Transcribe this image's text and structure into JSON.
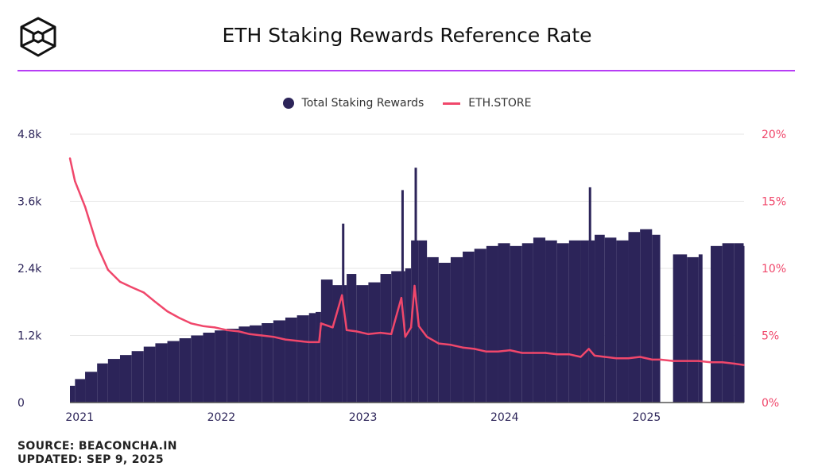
{
  "header": {
    "title": "ETH Staking Rewards Reference Rate",
    "logo": "cube-logo-icon",
    "accent": "#b73ef5"
  },
  "footer": {
    "source": "SOURCE: BEACONCHA.IN",
    "updated": "UPDATED: SEP 9, 2025"
  },
  "chart_data": {
    "type": "bar+line",
    "title": "ETH Staking Rewards Reference Rate",
    "legend_position": "top-center",
    "grid": true,
    "x_ticks": [
      "2021",
      "2022",
      "2023",
      "2024",
      "2025"
    ],
    "y_left": {
      "ticks": [
        "0",
        "1.2k",
        "2.4k",
        "3.6k",
        "4.8k"
      ],
      "range": [
        0,
        4800
      ],
      "color": "#2c2459"
    },
    "y_right": {
      "ticks": [
        "0%",
        "5%",
        "10%",
        "15%",
        "20%"
      ],
      "range": [
        0,
        20
      ],
      "color": "#f0476b"
    },
    "series": [
      {
        "name": "Total Staking Rewards",
        "kind": "bar",
        "axis": "left",
        "color": "#2c2459",
        "dates": [
          "2020-12-07",
          "2020-12-20",
          "2021-01-15",
          "2021-02-15",
          "2021-03-15",
          "2021-04-15",
          "2021-05-15",
          "2021-06-15",
          "2021-07-15",
          "2021-08-15",
          "2021-09-15",
          "2021-10-15",
          "2021-11-15",
          "2021-12-15",
          "2022-01-15",
          "2022-02-15",
          "2022-03-15",
          "2022-04-15",
          "2022-05-15",
          "2022-06-15",
          "2022-07-15",
          "2022-08-15",
          "2022-09-01",
          "2022-09-15",
          "2022-10-15",
          "2022-11-08",
          "2022-11-20",
          "2022-12-15",
          "2023-01-15",
          "2023-02-15",
          "2023-03-15",
          "2023-04-10",
          "2023-04-20",
          "2023-05-05",
          "2023-05-14",
          "2023-05-25",
          "2023-06-15",
          "2023-07-15",
          "2023-08-15",
          "2023-09-15",
          "2023-10-15",
          "2023-11-15",
          "2023-12-15",
          "2024-01-15",
          "2024-02-15",
          "2024-03-15",
          "2024-04-15",
          "2024-05-15",
          "2024-06-15",
          "2024-07-15",
          "2024-08-05",
          "2024-08-20",
          "2024-09-15",
          "2024-10-15",
          "2024-11-15",
          "2024-12-15",
          "2025-01-15",
          "2025-02-05",
          "2025-03-10",
          "2025-04-15",
          "2025-05-15",
          "2025-05-25",
          "2025-06-15",
          "2025-07-15",
          "2025-08-15",
          "2025-09-08"
        ],
        "values": [
          300,
          420,
          550,
          700,
          780,
          850,
          920,
          1000,
          1060,
          1100,
          1150,
          1200,
          1250,
          1290,
          1320,
          1360,
          1380,
          1420,
          1470,
          1520,
          1560,
          1600,
          1620,
          2200,
          2100,
          3200,
          2300,
          2100,
          2150,
          2300,
          2350,
          3800,
          2400,
          2900,
          4200,
          2900,
          2600,
          2500,
          2600,
          2700,
          2750,
          2800,
          2850,
          2800,
          2850,
          2950,
          2900,
          2850,
          2900,
          2900,
          3850,
          3000,
          2950,
          2900,
          3050,
          3100,
          3000,
          null,
          2650,
          2600,
          2650,
          null,
          2800,
          2850,
          2850,
          2800
        ]
      },
      {
        "name": "ETH.STORE",
        "kind": "line",
        "axis": "right",
        "color": "#f0476b",
        "dates": [
          "2020-12-07",
          "2020-12-20",
          "2021-01-15",
          "2021-02-15",
          "2021-03-15",
          "2021-04-15",
          "2021-05-15",
          "2021-06-15",
          "2021-07-15",
          "2021-08-15",
          "2021-09-15",
          "2021-10-15",
          "2021-11-15",
          "2021-12-15",
          "2022-01-15",
          "2022-02-15",
          "2022-03-15",
          "2022-04-15",
          "2022-05-15",
          "2022-06-15",
          "2022-07-15",
          "2022-08-15",
          "2022-09-10",
          "2022-09-15",
          "2022-10-15",
          "2022-11-08",
          "2022-11-20",
          "2022-12-15",
          "2023-01-15",
          "2023-02-15",
          "2023-03-15",
          "2023-04-10",
          "2023-04-20",
          "2023-05-05",
          "2023-05-14",
          "2023-05-25",
          "2023-06-15",
          "2023-07-15",
          "2023-08-15",
          "2023-09-15",
          "2023-10-15",
          "2023-11-15",
          "2023-12-15",
          "2024-01-15",
          "2024-02-15",
          "2024-03-15",
          "2024-04-15",
          "2024-05-15",
          "2024-06-15",
          "2024-07-15",
          "2024-08-05",
          "2024-08-20",
          "2024-09-15",
          "2024-10-15",
          "2024-11-15",
          "2024-12-15",
          "2025-01-15",
          "2025-02-05",
          "2025-03-10",
          "2025-04-15",
          "2025-05-15",
          "2025-06-15",
          "2025-07-15",
          "2025-08-15",
          "2025-09-08"
        ],
        "values": [
          18.2,
          16.5,
          14.6,
          11.7,
          9.9,
          9.0,
          8.6,
          8.2,
          7.5,
          6.8,
          6.3,
          5.9,
          5.7,
          5.6,
          5.4,
          5.3,
          5.1,
          5.0,
          4.9,
          4.7,
          4.6,
          4.5,
          4.5,
          5.9,
          5.6,
          8.0,
          5.4,
          5.3,
          5.1,
          5.2,
          5.1,
          7.8,
          4.9,
          5.6,
          8.7,
          5.7,
          4.9,
          4.4,
          4.3,
          4.1,
          4.0,
          3.8,
          3.8,
          3.9,
          3.7,
          3.7,
          3.7,
          3.6,
          3.6,
          3.4,
          4.0,
          3.5,
          3.4,
          3.3,
          3.3,
          3.4,
          3.2,
          3.2,
          3.1,
          3.1,
          3.1,
          3.0,
          3.0,
          2.9,
          2.8
        ]
      }
    ]
  }
}
